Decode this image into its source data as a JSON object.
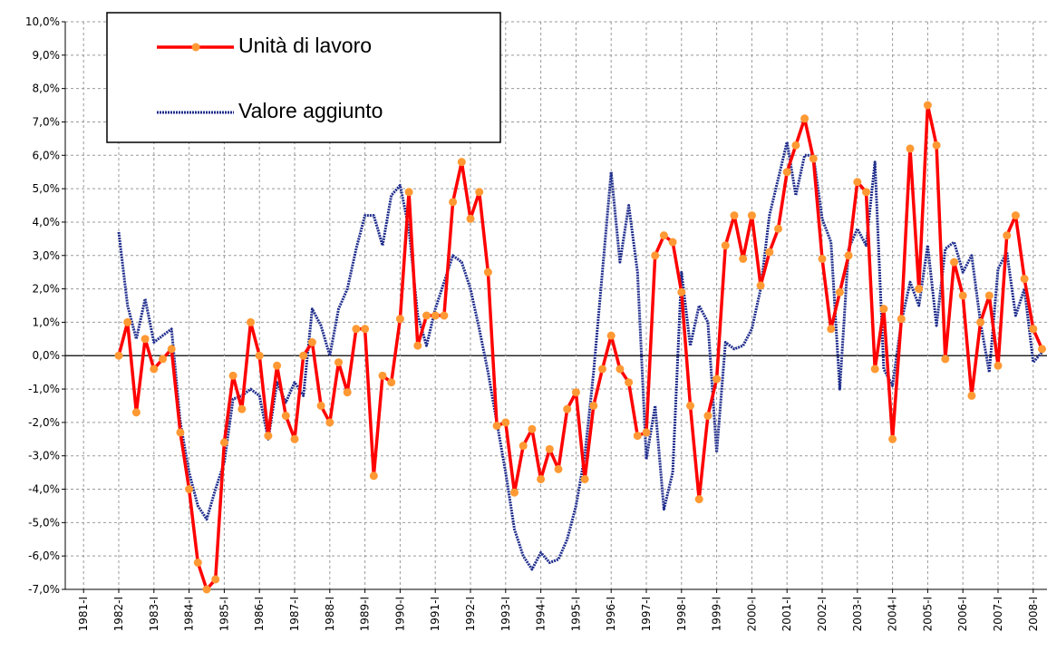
{
  "chart_data": {
    "type": "line",
    "categories": [
      "1981-I",
      null,
      null,
      null,
      "1982-I",
      null,
      null,
      null,
      "1983-I",
      null,
      null,
      null,
      "1984-I",
      null,
      null,
      null,
      "1985-I",
      null,
      null,
      null,
      "1986-I",
      null,
      null,
      null,
      "1987-I",
      null,
      null,
      null,
      "1988-I",
      null,
      null,
      null,
      "1989-I",
      null,
      null,
      null,
      "1990-I",
      null,
      null,
      null,
      "1991-I",
      null,
      null,
      null,
      "1992-I",
      null,
      null,
      null,
      "1993-I",
      null,
      null,
      null,
      "1994-I",
      null,
      null,
      null,
      "1995-I",
      null,
      null,
      null,
      "1996-I",
      null,
      null,
      null,
      "1997-I",
      null,
      null,
      null,
      "1998-I",
      null,
      null,
      null,
      "1999-I",
      null,
      null,
      null,
      "2000-I",
      null,
      null,
      null,
      "2001-I",
      null,
      null,
      null,
      "2002-I",
      null,
      null,
      null,
      "2003-I",
      null,
      null,
      null,
      "2004-I",
      null,
      null,
      null,
      "2005-I",
      null,
      null,
      null,
      "2006-I",
      null,
      null,
      null,
      "2007-I",
      null,
      null,
      null,
      "2008-I",
      null
    ],
    "series": [
      {
        "name": "Unità di lavoro",
        "color": "#ff0000",
        "marker_color": "#ff9933",
        "values": [
          null,
          null,
          null,
          null,
          0,
          1.0,
          -1.7,
          0.5,
          -0.4,
          -0.1,
          0.2,
          -2.3,
          -4.0,
          -6.2,
          -7.0,
          -6.7,
          -2.6,
          -0.6,
          -1.6,
          1.0,
          0.0,
          -2.4,
          -0.3,
          -1.8,
          -2.5,
          0.0,
          0.4,
          -1.5,
          -2.0,
          -0.2,
          -1.1,
          0.8,
          0.8,
          -3.6,
          -0.6,
          -0.8,
          1.1,
          4.9,
          0.3,
          1.2,
          1.2,
          1.2,
          4.6,
          5.8,
          4.1,
          4.9,
          2.5,
          -2.1,
          -2.0,
          -4.1,
          -2.7,
          -2.2,
          -3.7,
          -2.8,
          -3.4,
          -1.6,
          -1.1,
          -3.7,
          -1.5,
          -0.4,
          0.6,
          -0.4,
          -0.8,
          -2.4,
          -2.3,
          3.0,
          3.6,
          3.4,
          1.9,
          -1.5,
          -4.3,
          -1.8,
          -0.7,
          3.3,
          4.2,
          2.9,
          4.2,
          2.1,
          3.1,
          3.8,
          5.5,
          6.3,
          7.1,
          5.9,
          2.9,
          0.8,
          1.9,
          3.0,
          5.2,
          4.9,
          -0.4,
          1.4,
          -2.5,
          1.1,
          6.2,
          2.0,
          7.5,
          6.3,
          -0.1,
          2.8,
          1.8,
          -1.2,
          1.0,
          1.8,
          -0.3,
          3.6,
          4.2,
          2.3,
          0.8,
          0.2
        ]
      },
      {
        "name": "Valore aggiunto",
        "color": "#1f2d8c",
        "values": [
          null,
          null,
          null,
          null,
          3.7,
          1.5,
          0.5,
          1.7,
          0.4,
          0.6,
          0.8,
          -2.0,
          -3.5,
          -4.5,
          -4.9,
          -4.0,
          -3.2,
          -1.3,
          -1.2,
          -1.0,
          -1.2,
          -2.5,
          -0.8,
          -1.4,
          -0.8,
          -1.2,
          1.4,
          0.9,
          0.0,
          1.4,
          2.0,
          3.2,
          4.2,
          4.2,
          3.3,
          4.8,
          5.1,
          3.8,
          1.2,
          0.3,
          1.4,
          2.2,
          3.0,
          2.8,
          2.0,
          0.8,
          -0.5,
          -2.0,
          -3.5,
          -5.2,
          -6.0,
          -6.4,
          -5.9,
          -6.2,
          -6.1,
          -5.5,
          -4.5,
          -3.0,
          -0.5,
          2.5,
          5.5,
          2.8,
          4.5,
          2.5,
          -3.1,
          -1.5,
          -4.6,
          -3.5,
          2.5,
          0.3,
          1.5,
          1.0,
          -2.9,
          0.4,
          0.2,
          0.3,
          0.8,
          2.0,
          4.2,
          5.3,
          6.4,
          4.8,
          6.0,
          6.0,
          4.1,
          3.4,
          -1.0,
          3.2,
          3.8,
          3.3,
          5.8,
          -0.4,
          -0.9,
          1.0,
          2.2,
          1.5,
          3.3,
          0.9,
          3.2,
          3.4,
          2.5,
          3.0,
          1.0,
          -0.5,
          2.6,
          3.1,
          1.2,
          2.0,
          -0.2,
          0.1
        ]
      }
    ],
    "ylim": [
      -7,
      10
    ],
    "yticks": [
      {
        "value": -7,
        "label": "-7,0%"
      },
      {
        "value": -6,
        "label": "-6,0%"
      },
      {
        "value": -5,
        "label": "-5,0%"
      },
      {
        "value": -4,
        "label": "-4,0%"
      },
      {
        "value": -3,
        "label": "-3,0%"
      },
      {
        "value": -2,
        "label": "-2,0%"
      },
      {
        "value": -1,
        "label": "-1,0%"
      },
      {
        "value": 0,
        "label": "0,0%"
      },
      {
        "value": 1,
        "label": "1,0%"
      },
      {
        "value": 2,
        "label": "2,0%"
      },
      {
        "value": 3,
        "label": "3,0%"
      },
      {
        "value": 4,
        "label": "4,0%"
      },
      {
        "value": 5,
        "label": "5,0%"
      },
      {
        "value": 6,
        "label": "6,0%"
      },
      {
        "value": 7,
        "label": "7,0%"
      },
      {
        "value": 8,
        "label": "8,0%"
      },
      {
        "value": 9,
        "label": "9,0%"
      },
      {
        "value": 10,
        "label": "10,0%"
      }
    ],
    "grid": true,
    "legend": "top-left"
  }
}
